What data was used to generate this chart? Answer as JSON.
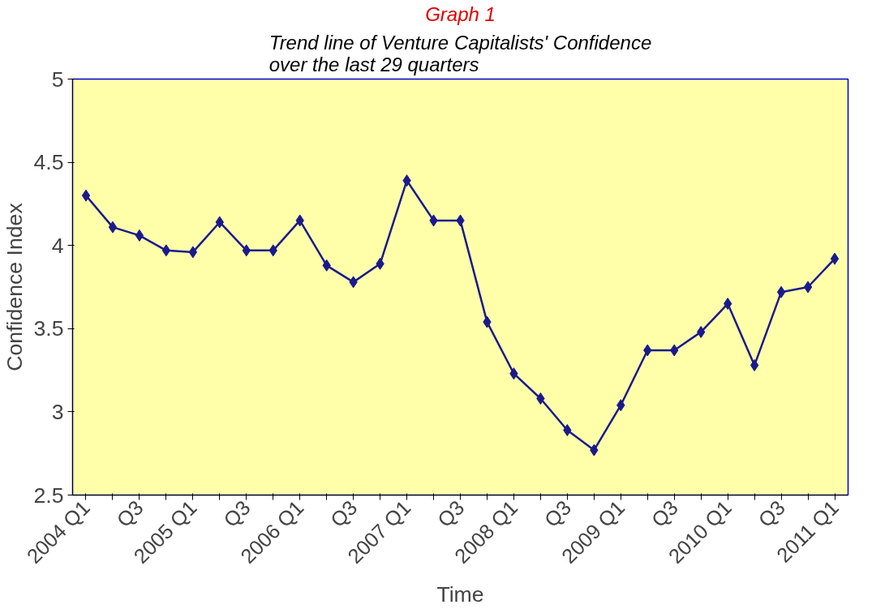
{
  "chart_data": {
    "type": "line",
    "title": "Graph 1",
    "subtitle": "Trend line of Venture Capitalists' Confidence\nover the last 29 quarters",
    "xlabel": "Time",
    "ylabel": "Confidence Index",
    "categories": [
      "2004 Q1",
      null,
      "Q3",
      null,
      "2005 Q1",
      null,
      "Q3",
      null,
      "2006 Q1",
      null,
      "Q3",
      null,
      "2007 Q1",
      null,
      "Q3",
      null,
      "2008 Q1",
      null,
      "Q3",
      null,
      "2009 Q1",
      null,
      "Q3",
      null,
      "2010 Q1",
      null,
      "Q3",
      null,
      "2011 Q1"
    ],
    "series": [
      {
        "color": "#1a1a8c",
        "values": [
          4.3,
          4.11,
          4.06,
          3.97,
          3.96,
          4.14,
          3.97,
          3.97,
          4.15,
          3.88,
          3.78,
          3.89,
          4.39,
          4.15,
          4.15,
          3.54,
          3.23,
          3.08,
          2.89,
          2.77,
          3.04,
          3.37,
          3.37,
          3.48,
          3.65,
          3.28,
          3.72,
          3.75,
          3.92
        ]
      }
    ],
    "ylim": [
      2.5,
      5
    ],
    "yticks": [
      2.5,
      3,
      3.5,
      4,
      4.5,
      5
    ],
    "marker": "diamond",
    "line_style": "solid"
  }
}
